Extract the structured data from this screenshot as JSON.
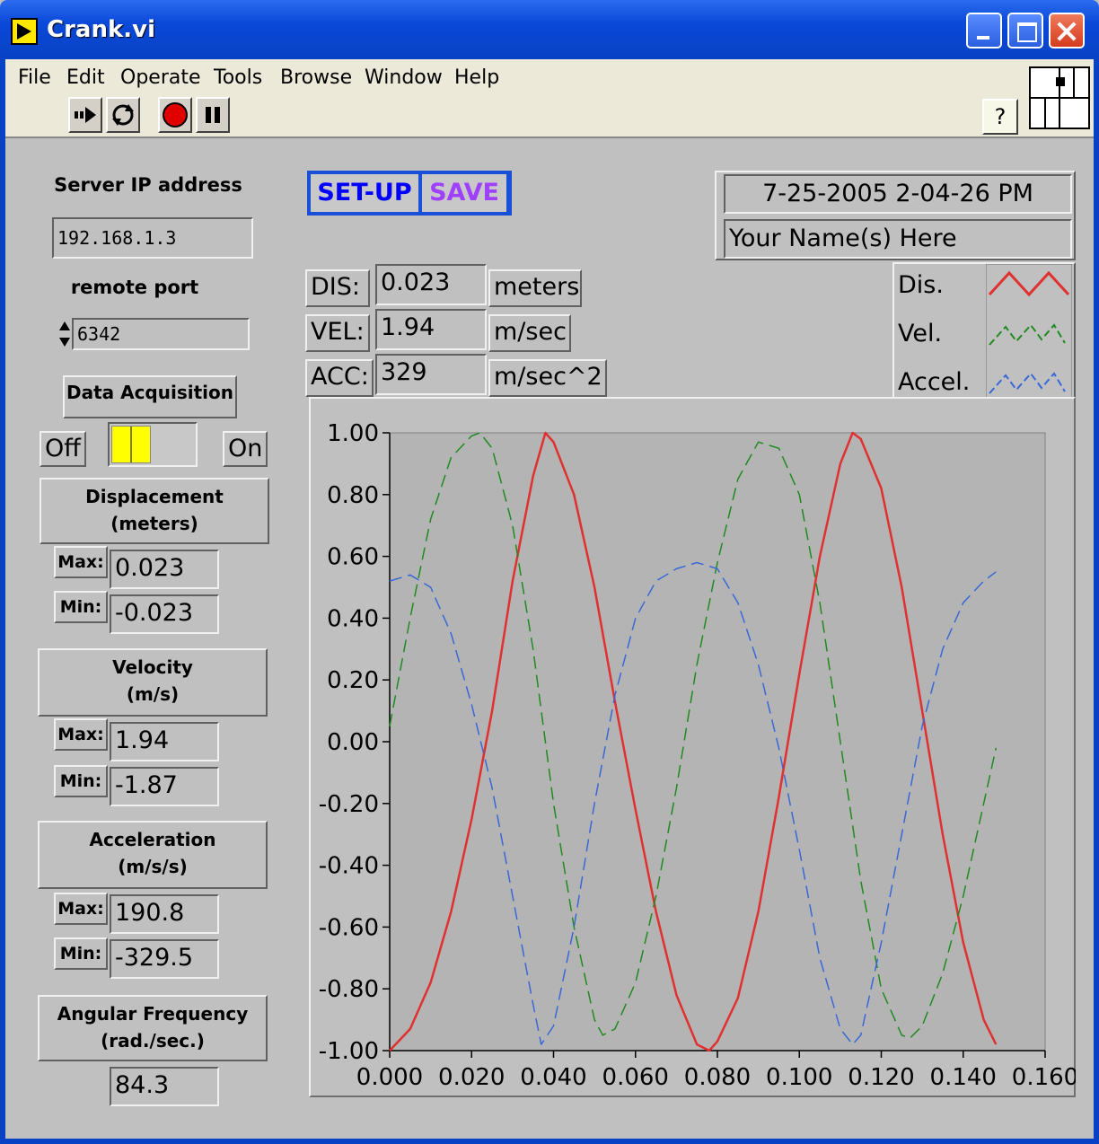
{
  "window": {
    "title": "Crank.vi"
  },
  "menu": [
    "File",
    "Edit",
    "Operate",
    "Tools",
    "Browse",
    "Window",
    "Help"
  ],
  "toolbar": {
    "run_icon": "run-arrow-icon",
    "continuous_icon": "run-continuously-icon",
    "abort_icon": "abort-stop-icon",
    "pause_icon": "pause-icon",
    "help_label": "?"
  },
  "server": {
    "label": "Server IP address",
    "ip": "192.168.1.3",
    "port_label": "remote port",
    "port": "6342"
  },
  "daq": {
    "label": "Data Acquisition",
    "off_label": "Off",
    "on_label": "On",
    "switch_color": "#ffff00"
  },
  "displacement": {
    "label_line1": "Displacement",
    "label_line2": "(meters)",
    "max_label": "Max:",
    "max": "0.023",
    "min_label": "Min:",
    "min": "-0.023"
  },
  "velocity": {
    "label_line1": "Velocity",
    "label_line2": "(m/s)",
    "max_label": "Max:",
    "max": "1.94",
    "min_label": "Min:",
    "min": "-1.87"
  },
  "acceleration": {
    "label_line1": "Acceleration",
    "label_line2": "(m/s/s)",
    "max_label": "Max:",
    "max": "190.8",
    "min_label": "Min:",
    "min": "-329.5"
  },
  "angular": {
    "label_line1": "Angular Frequency",
    "label_line2": "(rad./sec.)",
    "value": "84.3"
  },
  "buttons": {
    "setup": "SET-UP",
    "save": "SAVE",
    "setup_color": "#0000ff",
    "save_color": "#a040ff"
  },
  "info": {
    "datetime": "7-25-2005   2-04-26 PM",
    "name": "Your Name(s) Here"
  },
  "readouts": [
    {
      "label": "DIS:",
      "value": "0.023",
      "unit": "meters"
    },
    {
      "label": "VEL:",
      "value": "1.94",
      "unit": "m/sec"
    },
    {
      "label": "ACC:",
      "value": "329",
      "unit": "m/sec^2"
    }
  ],
  "chart_data": {
    "type": "line",
    "title": "",
    "xlabel": "",
    "ylabel": "",
    "xlim": [
      0.0,
      0.16
    ],
    "ylim": [
      -1.0,
      1.0
    ],
    "x_ticks": [
      "0.000",
      "0.020",
      "0.040",
      "0.060",
      "0.080",
      "0.100",
      "0.120",
      "0.140",
      "0.160"
    ],
    "y_ticks": [
      "1.00",
      "0.80",
      "0.60",
      "0.40",
      "0.20",
      "0.00",
      "-0.20",
      "-0.40",
      "-0.60",
      "-0.80",
      "-1.00"
    ],
    "grid": false,
    "legend_position": "top-right",
    "series": [
      {
        "name": "Dis.",
        "color": "#e03030",
        "dash": false,
        "x": [
          0.0,
          0.005,
          0.01,
          0.015,
          0.02,
          0.025,
          0.03,
          0.035,
          0.038,
          0.04,
          0.045,
          0.05,
          0.055,
          0.06,
          0.065,
          0.07,
          0.075,
          0.078,
          0.08,
          0.085,
          0.09,
          0.095,
          0.1,
          0.105,
          0.11,
          0.113,
          0.115,
          0.12,
          0.125,
          0.13,
          0.135,
          0.14,
          0.145,
          0.148
        ],
        "y": [
          -1.0,
          -0.93,
          -0.78,
          -0.55,
          -0.25,
          0.1,
          0.52,
          0.86,
          1.0,
          0.97,
          0.8,
          0.5,
          0.13,
          -0.22,
          -0.55,
          -0.82,
          -0.98,
          -1.0,
          -0.97,
          -0.83,
          -0.55,
          -0.18,
          0.22,
          0.6,
          0.9,
          1.0,
          0.98,
          0.82,
          0.5,
          0.1,
          -0.3,
          -0.65,
          -0.9,
          -0.98
        ]
      },
      {
        "name": "Vel.",
        "color": "#208a20",
        "dash": true,
        "x": [
          0.0,
          0.005,
          0.01,
          0.015,
          0.02,
          0.022,
          0.025,
          0.03,
          0.035,
          0.04,
          0.045,
          0.05,
          0.052,
          0.055,
          0.06,
          0.065,
          0.07,
          0.075,
          0.08,
          0.085,
          0.09,
          0.095,
          0.1,
          0.105,
          0.11,
          0.115,
          0.12,
          0.125,
          0.127,
          0.13,
          0.135,
          0.14,
          0.145,
          0.148
        ],
        "y": [
          0.05,
          0.4,
          0.72,
          0.92,
          0.99,
          1.0,
          0.95,
          0.7,
          0.3,
          -0.2,
          -0.6,
          -0.9,
          -0.95,
          -0.93,
          -0.78,
          -0.5,
          -0.15,
          0.25,
          0.58,
          0.85,
          0.97,
          0.95,
          0.8,
          0.45,
          0.0,
          -0.45,
          -0.8,
          -0.95,
          -0.96,
          -0.92,
          -0.75,
          -0.5,
          -0.2,
          -0.02
        ]
      },
      {
        "name": "Accel.",
        "color": "#3868d8",
        "dash": true,
        "x": [
          0.0,
          0.005,
          0.01,
          0.015,
          0.02,
          0.025,
          0.03,
          0.035,
          0.037,
          0.04,
          0.045,
          0.05,
          0.055,
          0.06,
          0.065,
          0.07,
          0.075,
          0.08,
          0.085,
          0.09,
          0.095,
          0.1,
          0.105,
          0.11,
          0.113,
          0.115,
          0.12,
          0.125,
          0.13,
          0.135,
          0.14,
          0.145,
          0.148
        ],
        "y": [
          0.52,
          0.54,
          0.5,
          0.35,
          0.12,
          -0.15,
          -0.5,
          -0.85,
          -0.98,
          -0.92,
          -0.6,
          -0.2,
          0.15,
          0.4,
          0.52,
          0.56,
          0.58,
          0.56,
          0.45,
          0.25,
          -0.02,
          -0.35,
          -0.7,
          -0.93,
          -0.98,
          -0.95,
          -0.65,
          -0.3,
          0.05,
          0.3,
          0.45,
          0.52,
          0.55
        ]
      }
    ]
  }
}
